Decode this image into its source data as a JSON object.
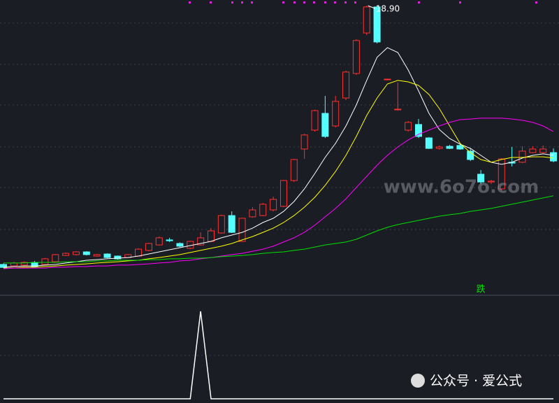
{
  "chart_data": {
    "type": "candlestick",
    "ylim": [
      5.17,
      19.17
    ],
    "up_color": "#ff3030",
    "down_color": "#54ffff",
    "open": [
      6.57,
      6.5,
      6.54,
      6.67,
      6.57,
      6.7,
      7.0,
      7.04,
      7.17,
      6.97,
      7.07,
      6.97,
      6.9,
      6.97,
      7.24,
      7.5,
      7.74,
      7.57,
      7.34,
      7.5,
      7.67,
      8.07,
      8.9,
      7.67,
      8.84,
      8.9,
      9.17,
      9.34,
      10.57,
      12.07,
      12.97,
      13.77,
      13.17,
      14.5,
      15.67,
      17.6,
      18.84,
      15.4,
      13.94,
      12.97,
      13.24,
      12.6,
      12.1,
      12.2,
      12.24,
      11.97,
      10.87,
      10.5,
      10.17,
      11.44,
      11.44,
      11.9,
      11.9,
      11.9
    ],
    "high": [
      6.62,
      6.7,
      6.72,
      6.74,
      6.88,
      7.07,
      7.14,
      7.2,
      7.2,
      7.07,
      7.1,
      7.0,
      7.07,
      7.34,
      7.6,
      7.9,
      7.84,
      7.62,
      7.7,
      8.1,
      8.3,
      8.94,
      9.1,
      8.8,
      9.3,
      9.5,
      9.8,
      10.6,
      11.6,
      12.8,
      13.94,
      14.6,
      14.6,
      15.8,
      17.3,
      18.9,
      18.88,
      15.42,
      15.24,
      13.4,
      13.5,
      12.64,
      12.24,
      12.27,
      12.34,
      12.1,
      11.07,
      10.6,
      11.64,
      12.17,
      12.2,
      12.2,
      12.24,
      12.1
    ],
    "low": [
      6.4,
      6.47,
      6.5,
      6.44,
      6.54,
      6.67,
      6.97,
      7.0,
      7.0,
      6.94,
      6.87,
      6.8,
      6.87,
      6.94,
      7.2,
      7.47,
      7.64,
      7.4,
      7.3,
      7.47,
      7.64,
      8.04,
      8.07,
      7.64,
      8.8,
      8.87,
      9.1,
      9.3,
      10.5,
      11.6,
      12.9,
      12.6,
      13.1,
      14.4,
      15.6,
      17.5,
      17.1,
      15.38,
      13.9,
      12.9,
      12.6,
      12.07,
      12.04,
      12.07,
      12.04,
      11.5,
      10.4,
      10.4,
      10.1,
      11.24,
      11.4,
      11.87,
      11.87,
      11.44
    ],
    "close": [
      6.43,
      6.64,
      6.67,
      6.47,
      6.84,
      7.04,
      7.1,
      7.17,
      7.04,
      7.04,
      6.9,
      6.84,
      7.04,
      7.3,
      7.57,
      7.84,
      7.7,
      7.44,
      7.67,
      7.84,
      8.17,
      8.9,
      8.1,
      8.77,
      9.17,
      9.44,
      9.67,
      10.57,
      11.57,
      12.74,
      13.9,
      12.67,
      14.34,
      15.74,
      17.24,
      18.84,
      17.17,
      15.4,
      13.97,
      13.34,
      12.67,
      12.1,
      12.17,
      12.1,
      12.07,
      11.57,
      10.5,
      10.54,
      11.6,
      11.4,
      11.97,
      12.07,
      12.07,
      11.5
    ],
    "high_label": "18.90",
    "lines": [
      {
        "color": "#ffffff",
        "values": [
          6.44,
          6.47,
          6.5,
          6.5,
          6.54,
          6.57,
          6.64,
          6.7,
          6.77,
          6.8,
          6.84,
          6.87,
          6.9,
          6.97,
          7.07,
          7.17,
          7.27,
          7.37,
          7.47,
          7.57,
          7.67,
          7.84,
          7.97,
          8.1,
          8.3,
          8.57,
          8.77,
          9.1,
          9.57,
          10.17,
          10.9,
          11.67,
          12.34,
          13.17,
          14.17,
          15.34,
          16.44,
          16.9,
          16.67,
          15.84,
          14.84,
          13.77,
          13.0,
          12.57,
          12.3,
          12.1,
          11.77,
          11.44,
          11.34,
          11.44,
          11.64,
          11.77,
          11.84,
          11.77
        ]
      },
      {
        "color": "#ffff00",
        "values": [
          6.4,
          6.4,
          6.44,
          6.44,
          6.47,
          6.5,
          6.54,
          6.57,
          6.6,
          6.64,
          6.67,
          6.7,
          6.74,
          6.77,
          6.84,
          6.9,
          6.97,
          7.04,
          7.14,
          7.24,
          7.34,
          7.44,
          7.57,
          7.74,
          7.9,
          8.1,
          8.3,
          8.57,
          8.9,
          9.3,
          9.77,
          10.34,
          11.0,
          11.77,
          12.67,
          13.67,
          14.5,
          15.17,
          15.34,
          15.27,
          15.1,
          14.67,
          14.0,
          13.17,
          12.34,
          11.9,
          11.57,
          11.44,
          11.57,
          11.67,
          11.67,
          11.7,
          11.7,
          11.64
        ]
      },
      {
        "color": "#ff00ff",
        "values": [
          6.37,
          6.4,
          6.4,
          6.4,
          6.4,
          6.44,
          6.44,
          6.47,
          6.47,
          6.5,
          6.5,
          6.54,
          6.54,
          6.57,
          6.6,
          6.64,
          6.67,
          6.74,
          6.77,
          6.84,
          6.9,
          6.97,
          7.04,
          7.1,
          7.2,
          7.3,
          7.44,
          7.64,
          7.84,
          8.1,
          8.44,
          8.84,
          9.24,
          9.7,
          10.24,
          10.77,
          11.3,
          11.77,
          12.17,
          12.5,
          12.77,
          12.97,
          13.17,
          13.34,
          13.47,
          13.5,
          13.54,
          13.54,
          13.54,
          13.5,
          13.44,
          13.34,
          13.17,
          12.9
        ]
      },
      {
        "color": "#00e000",
        "values": [
          6.64,
          6.64,
          6.64,
          6.67,
          6.67,
          6.67,
          6.7,
          6.7,
          6.7,
          6.74,
          6.74,
          6.77,
          6.77,
          6.77,
          6.8,
          6.8,
          6.84,
          6.84,
          6.87,
          6.87,
          6.9,
          6.94,
          6.97,
          7.0,
          7.04,
          7.1,
          7.14,
          7.17,
          7.24,
          7.3,
          7.4,
          7.5,
          7.57,
          7.64,
          7.77,
          7.97,
          8.17,
          8.34,
          8.47,
          8.57,
          8.67,
          8.77,
          8.87,
          8.94,
          9.0,
          9.1,
          9.17,
          9.24,
          9.34,
          9.44,
          9.54,
          9.64,
          9.74,
          9.84
        ]
      }
    ],
    "signal_label": "跌",
    "signal_color": "#00e000",
    "indicator": {
      "color": "#ffffff",
      "ylim": [
        0,
        1
      ],
      "values": [
        0,
        0,
        0,
        0,
        0,
        0,
        0,
        0,
        0,
        0,
        0,
        0,
        0,
        0,
        0,
        0,
        0,
        0,
        0,
        1,
        0,
        0,
        0,
        0,
        0,
        0,
        0,
        0,
        0,
        0,
        0,
        0,
        0,
        0,
        0,
        0,
        0,
        0,
        0,
        0,
        0,
        0,
        0,
        0,
        0,
        0,
        0,
        0,
        0,
        0,
        0,
        0,
        0,
        0
      ]
    },
    "watermark": "www.6o7o.com",
    "footer": "公众号 · 爱公式"
  }
}
